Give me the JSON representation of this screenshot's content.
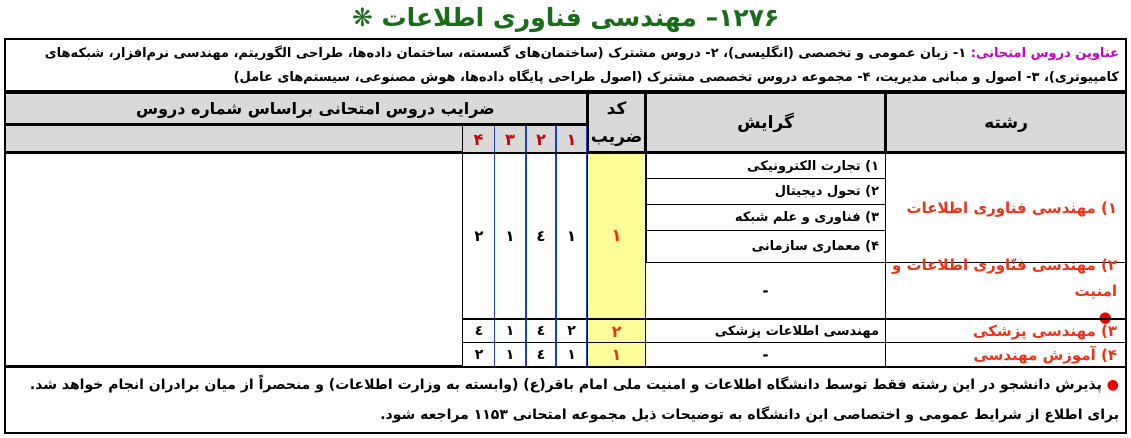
{
  "title": "۱۲۷۶– مهندسی فناوری اطلاعات ❋",
  "exam_topics": {
    "label": "عناوین دروس امتحانی:",
    "text": " ۱- زبان عمومی و تخصصی (انگلیسی)، ۲- دروس مشترک (ساختمان‌های گسسته، ساختمان داده‌ها، طراحی الگوریتم، مهندسی نرم‌افزار، شبکه‌های کامپیوتری)، ۳- اصول و مبانی مدیریت، ۴- مجموعه دروس تخصصی مشترک (اصول طراحی پایگاه داده‌ها، هوش مصنوعی، سیستم‌های عامل)"
  },
  "headers": {
    "field": "رشته",
    "orientation": "گرایش",
    "coef_code": "کد ضریب",
    "coef_title": "ضرایب دروس امتحانی براساس شماره دروس",
    "course_numbers": [
      "۱",
      "۲",
      "۳",
      "۴"
    ]
  },
  "rows": [
    {
      "field": "۱) مهندسی فناوری اطلاعات",
      "orientations": [
        "۱) تجارت الکترونیکی",
        "۲) تحول دیجیتال",
        "۳) فناوری و علم شبکه",
        "۴) معماری سازمانی"
      ]
    },
    {
      "field": "۲) مهندسی فنّاوری اطلاعات و امنیت",
      "marker": "●",
      "orientation": "-"
    },
    {
      "field": "۳) مهندسی پزشکی",
      "orientation": "مهندسی اطلاعات پزشکی",
      "coef_code": "۲",
      "coefs": [
        "۲",
        "٤",
        "۱",
        "٤"
      ]
    },
    {
      "field": "۴) آموزش مهندسی",
      "orientation": "-",
      "coef_code": "۱",
      "coefs": [
        "۱",
        "٤",
        "۱",
        "۲"
      ]
    }
  ],
  "shared": {
    "coef_code": "۱",
    "coefs": [
      "۱",
      "٤",
      "۱",
      "۲"
    ]
  },
  "footnote": {
    "marker": "●",
    "text": " پذیرش دانشجو در این رشته فقط توسط دانشگاه اطلاعات و امنیت ملی امام باقر(ع) (وابسته به وزارت اطلاعات) و منحصراً از میان برادران انجام خواهد شد. برای اطلاع از شرایط عمومی و اختصاصی این دانشگاه به توضیحات ذیل مجموعه امتحانی ۱۱۵۳ مراجعه شود."
  }
}
